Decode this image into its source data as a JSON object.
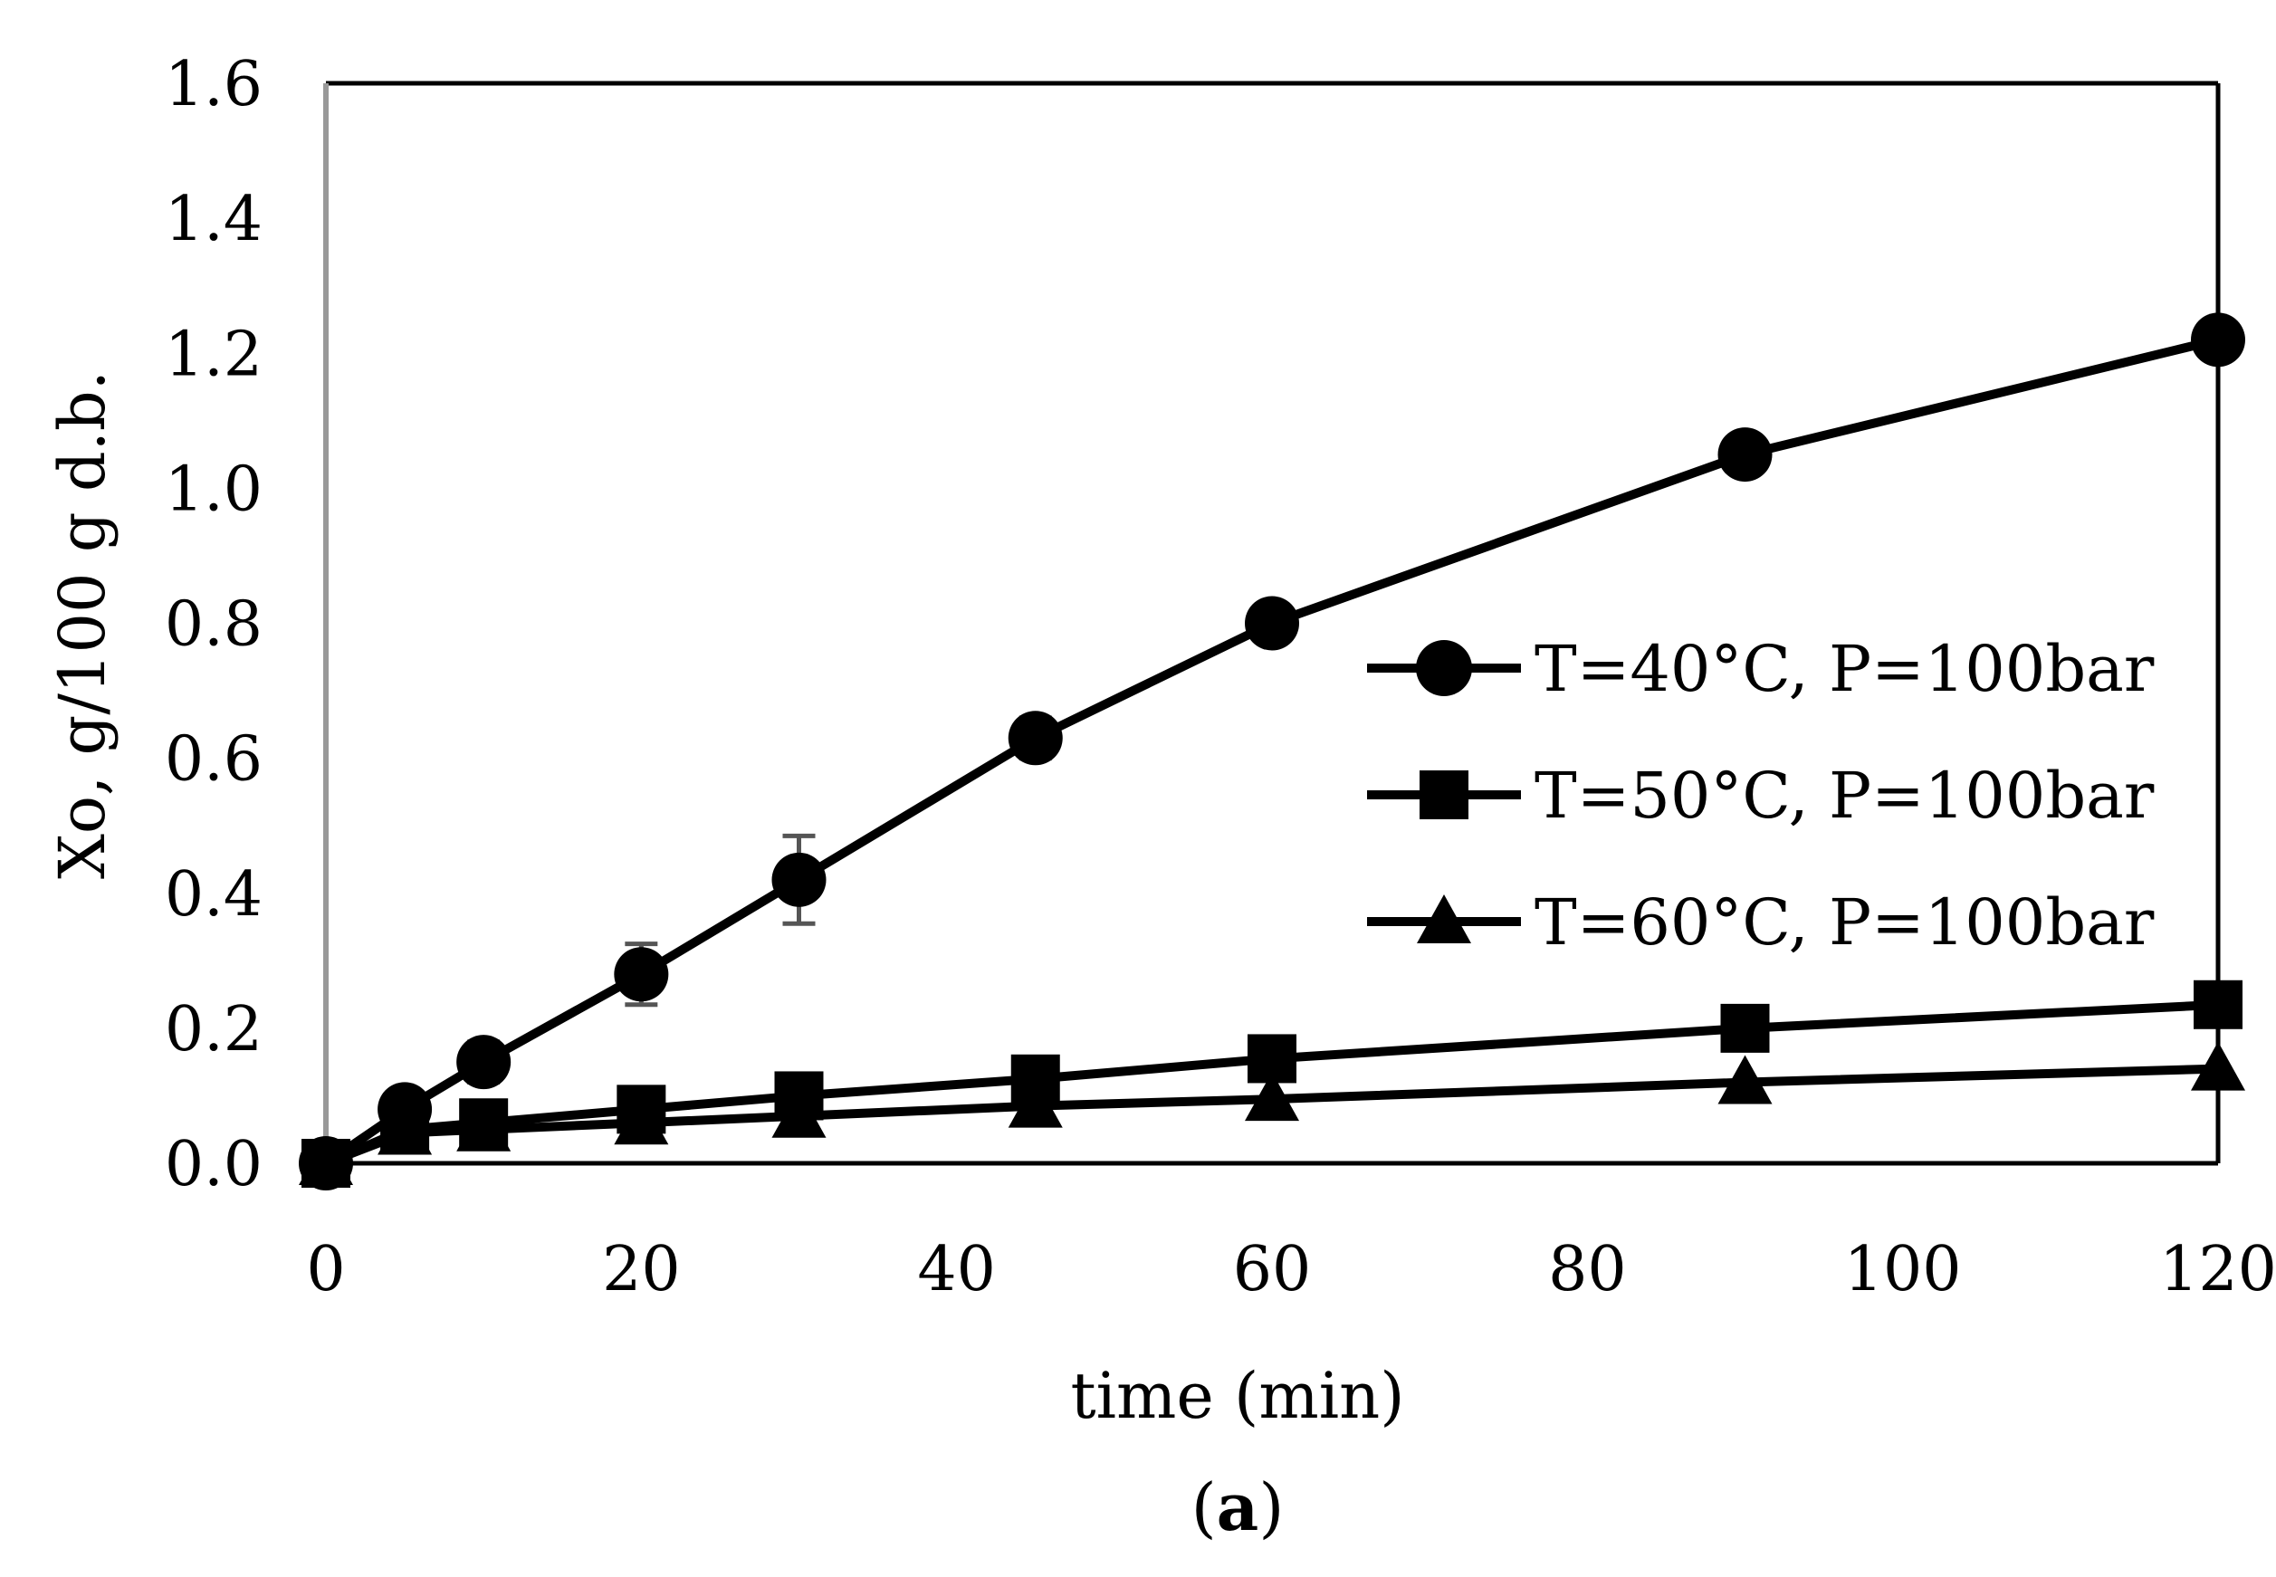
{
  "chart_data": {
    "type": "line",
    "title": "",
    "xlabel": "time (min)",
    "ylabel": "Xo, g/100 g d.b.",
    "caption_open": "(",
    "caption_letter": "a",
    "caption_close": ")",
    "xlim": [
      0,
      120
    ],
    "ylim": [
      0,
      1.6
    ],
    "x_ticks": [
      0,
      20,
      40,
      60,
      80,
      100,
      120
    ],
    "y_ticks": [
      0.0,
      0.2,
      0.4,
      0.6,
      0.8,
      1.0,
      1.2,
      1.4,
      1.6
    ],
    "x_tick_labels": [
      "0",
      "20",
      "40",
      "60",
      "80",
      "100",
      "120"
    ],
    "y_tick_labels": [
      "0.0",
      "0.2",
      "0.4",
      "0.6",
      "0.8",
      "1.0",
      "1.2",
      "1.4",
      "1.6"
    ],
    "grid": false,
    "legend_position": "right-middle",
    "series": [
      {
        "name": "T=40°C, P=100bar",
        "marker": "circle",
        "x": [
          0,
          5,
          10,
          20,
          30,
          45,
          60,
          90,
          120
        ],
        "y": [
          0.0,
          0.08,
          0.15,
          0.28,
          0.42,
          0.63,
          0.8,
          1.05,
          1.22
        ],
        "error": [
          0,
          0.01,
          0.03,
          0.045,
          0.065,
          0.03,
          0.0,
          0.0,
          0.0
        ]
      },
      {
        "name": "T=50°C, P=100bar",
        "marker": "square",
        "x": [
          0,
          5,
          10,
          20,
          30,
          45,
          60,
          90,
          120
        ],
        "y": [
          0.0,
          0.05,
          0.06,
          0.08,
          0.1,
          0.125,
          0.155,
          0.2,
          0.235
        ],
        "error": [
          0,
          0,
          0,
          0,
          0,
          0,
          0,
          0,
          0
        ]
      },
      {
        "name": "T=60°C, P=100bar",
        "marker": "triangle",
        "x": [
          0,
          5,
          10,
          20,
          30,
          45,
          60,
          90,
          120
        ],
        "y": [
          0.0,
          0.045,
          0.05,
          0.06,
          0.07,
          0.085,
          0.095,
          0.12,
          0.14
        ],
        "error": [
          0,
          0,
          0,
          0,
          0,
          0,
          0,
          0,
          0
        ]
      }
    ]
  },
  "colors": {
    "series": "#000000",
    "error_bar": "#555555",
    "left_axis": "#999999"
  }
}
